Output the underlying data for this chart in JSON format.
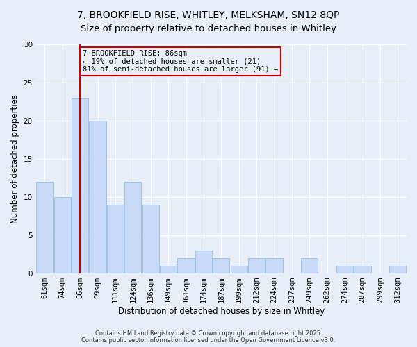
{
  "title_line1": "7, BROOKFIELD RISE, WHITLEY, MELKSHAM, SN12 8QP",
  "title_line2": "Size of property relative to detached houses in Whitley",
  "xlabel": "Distribution of detached houses by size in Whitley",
  "ylabel": "Number of detached properties",
  "categories": [
    "61sqm",
    "74sqm",
    "86sqm",
    "99sqm",
    "111sqm",
    "124sqm",
    "136sqm",
    "149sqm",
    "161sqm",
    "174sqm",
    "187sqm",
    "199sqm",
    "212sqm",
    "224sqm",
    "237sqm",
    "249sqm",
    "262sqm",
    "274sqm",
    "287sqm",
    "299sqm",
    "312sqm"
  ],
  "values": [
    12,
    10,
    23,
    20,
    9,
    12,
    9,
    1,
    2,
    3,
    2,
    1,
    2,
    2,
    0,
    2,
    0,
    1,
    1,
    0,
    1
  ],
  "bar_color": "#c9daf8",
  "bar_edge_color": "#9fc5e8",
  "subject_bar_index": 2,
  "subject_line_color": "#cc0000",
  "annotation_line1": "7 BROOKFIELD RISE: 86sqm",
  "annotation_line2": "← 19% of detached houses are smaller (21)",
  "annotation_line3": "81% of semi-detached houses are larger (91) →",
  "annotation_box_color": "#cc0000",
  "ylim": [
    0,
    30
  ],
  "yticks": [
    0,
    5,
    10,
    15,
    20,
    25,
    30
  ],
  "footnote": "Contains HM Land Registry data © Crown copyright and database right 2025.\nContains public sector information licensed under the Open Government Licence v3.0.",
  "background_color": "#e8eef8",
  "grid_color": "#ffffff",
  "title_fontsize": 10,
  "axis_label_fontsize": 8.5,
  "tick_fontsize": 7.5,
  "annotation_fontsize": 7.5
}
